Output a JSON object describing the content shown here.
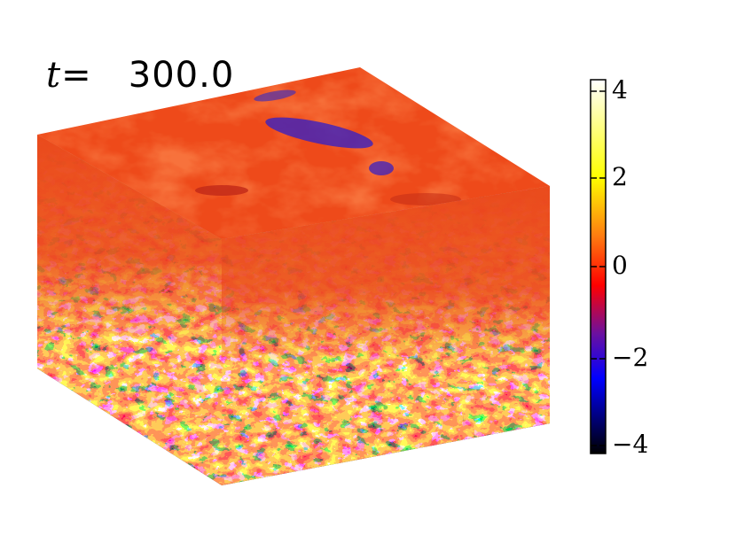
{
  "time": {
    "symbol": "t",
    "equals": "=",
    "value": "300.0"
  },
  "colorbar": {
    "ticks": [
      "4",
      "2",
      "0",
      "−2",
      "−4"
    ],
    "range": [
      -4.3,
      4.3
    ],
    "stops": [
      "#000000",
      "#0000ff",
      "#800080",
      "#ff0000",
      "#ff8000",
      "#ffff00",
      "#ffffff"
    ]
  },
  "cube": {
    "faces": [
      "top-face",
      "left-face",
      "right-face"
    ],
    "colors": {
      "top": "#f04818",
      "side_upper": "#e83818",
      "side_lower_light": "#fff0a0",
      "side_lower_dark": "#1a1040",
      "streak": "#3020c0"
    }
  }
}
